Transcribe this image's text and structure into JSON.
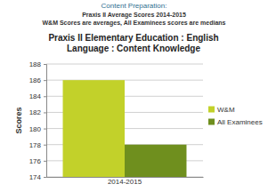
{
  "header": {
    "heading": "Content Preparation:",
    "lines": [
      "Praxis II Average Scores 2014-2015",
      "W&M Scores are averages, All Examinees scores are medians"
    ]
  },
  "chart_data": {
    "type": "bar",
    "title": "Praxis II Elementary Education : English Language : Content Knowledge",
    "y_label": "Scores",
    "categories": [
      "2014-2015"
    ],
    "series": [
      {
        "name": "W&M",
        "color": "#c2d12a",
        "values": [
          186
        ]
      },
      {
        "name": "All Examinees",
        "color": "#6f8f1e",
        "values": [
          178
        ]
      }
    ],
    "ylim": [
      174,
      188
    ],
    "yticks": [
      174,
      176,
      178,
      180,
      182,
      184,
      186,
      188
    ],
    "grid": true,
    "legend": "right"
  }
}
